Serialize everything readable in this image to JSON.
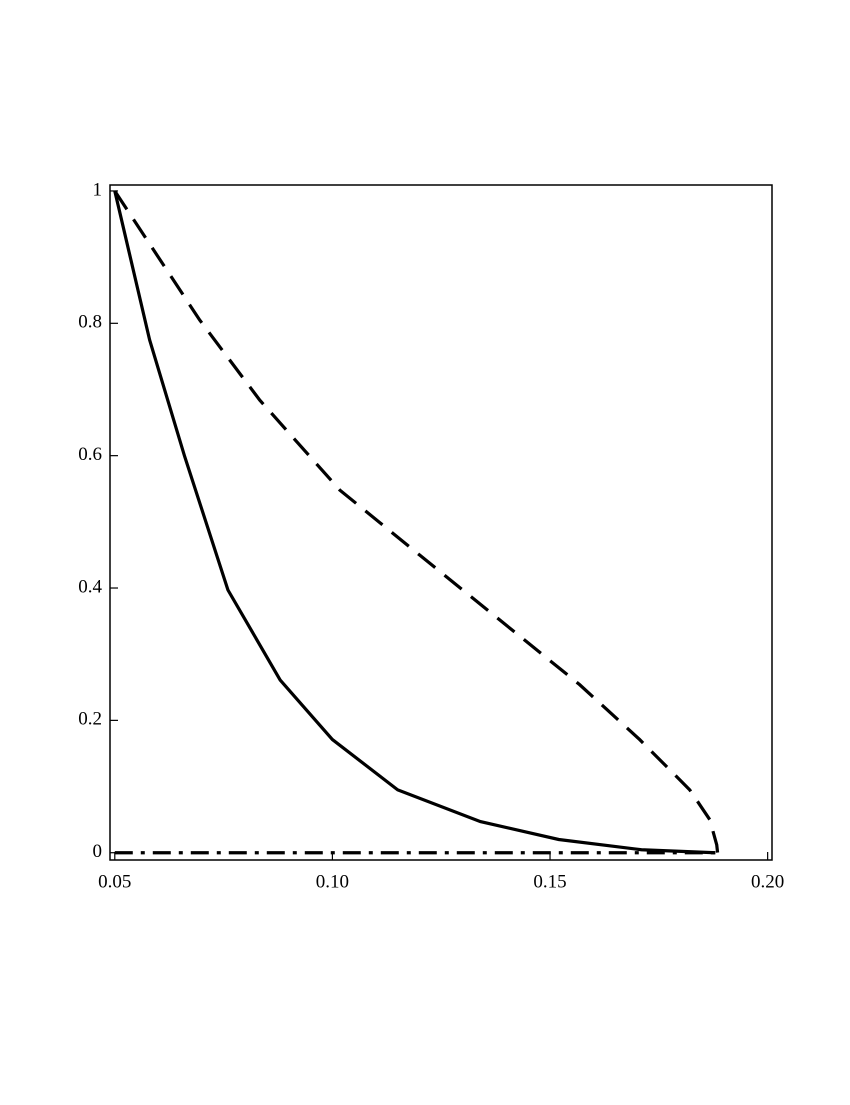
{
  "chart_data": {
    "type": "line",
    "xlim": [
      0.0489,
      0.201
    ],
    "ylim": [
      -0.011,
      1.009
    ],
    "xticks": [
      0.05,
      {
        "value": 0.1,
        "label": "0.10"
      },
      0.15,
      {
        "value": 0.2,
        "label": "0.20"
      }
    ],
    "yticks": [
      0,
      0.2,
      0.4,
      0.6,
      0.8,
      1
    ],
    "grid": false,
    "series": [
      {
        "color": "#000000",
        "style": "solid",
        "x": [
          0.05,
          0.058,
          0.066,
          0.076,
          0.088,
          0.1,
          0.115,
          0.134,
          0.152,
          0.171,
          0.188
        ],
        "values": [
          1,
          0.775,
          0.6,
          0.397,
          0.261,
          0.171,
          0.095,
          0.047,
          0.02,
          0.0045,
          0
        ]
      },
      {
        "color": "#000000",
        "style": "dash",
        "x": [
          0.05,
          0.0695,
          0.0833,
          0.1017,
          0.12,
          0.1384,
          0.1568,
          0.1706,
          0.1821,
          0.1867,
          0.1883,
          0.1885
        ],
        "values": [
          1,
          0.805,
          0.684,
          0.548,
          0.45,
          0.352,
          0.254,
          0.171,
          0.095,
          0.05,
          0.012,
          0.0
        ]
      },
      {
        "color": "#000000",
        "style": "dashdot",
        "x": [
          0.05,
          0.188
        ],
        "values": [
          0,
          0
        ]
      }
    ]
  }
}
